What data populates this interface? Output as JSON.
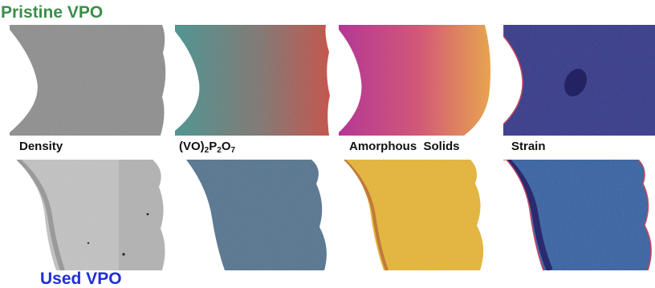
{
  "titles": {
    "pristine": "Pristine VPO",
    "used": "Used VPO"
  },
  "labels": {
    "density": "Density",
    "vo_prefix": "(VO)",
    "vo_sub1": "2",
    "vo_p": "P",
    "vo_sub2": "2",
    "vo_o": "O",
    "vo_sub3": "7",
    "amorphous": "Amorphous  Solids",
    "strain": "Strain"
  },
  "colors": {
    "pristine_title": "#3a8e4a",
    "used_title": "#1f2fd6",
    "density_pristine": "#8a8a8a",
    "density_used": "#c2c2c2",
    "vo_pristine_a": "#3f8f8c",
    "vo_pristine_b": "#c8453a",
    "vo_used": "#4e6f8c",
    "amorph_pristine_a": "#b3238f",
    "amorph_pristine_b": "#f0a73a",
    "amorph_used": "#e9b52e",
    "strain_pristine": "#2c2f86",
    "strain_used": "#2c5aa0"
  },
  "icons": {
    "panels": "tomography-map-image"
  }
}
